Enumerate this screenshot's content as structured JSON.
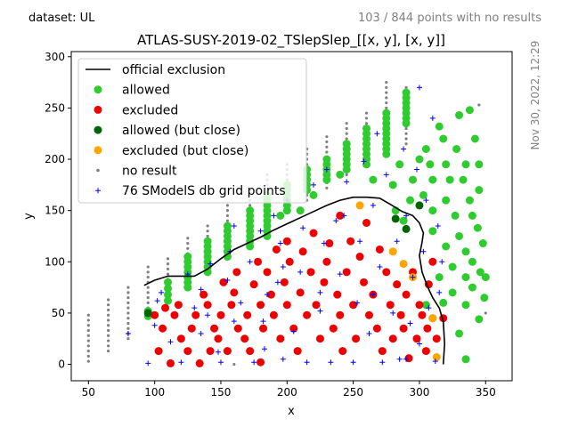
{
  "header": {
    "dataset_label": "dataset: UL",
    "no_results_note": "103 / 844 points with no results",
    "timestamp": "Nov 30, 2022, 12:29"
  },
  "chart_data": {
    "type": "scatter",
    "title": "ATLAS-SUSY-2019-02_TSlepSlep_[[x, y], [x, y]]",
    "xlabel": "x",
    "ylabel": "y",
    "xlim": [
      37,
      370
    ],
    "ylim": [
      -16,
      305
    ],
    "xticks": [
      50,
      100,
      150,
      200,
      250,
      300,
      350
    ],
    "yticks": [
      0,
      50,
      100,
      150,
      200,
      250,
      300
    ],
    "grid": false,
    "legend_position": "top-left",
    "colors": {
      "official_exclusion": "#000000",
      "allowed": "#2ecc2e",
      "excluded": "#ee0000",
      "allowed_close": "#006400",
      "excluded_close": "#ffa500",
      "no_result": "#808080",
      "db_grid": "#0000ff"
    },
    "legend": [
      {
        "key": "official_exclusion",
        "label": "official exclusion"
      },
      {
        "key": "allowed",
        "label": "allowed"
      },
      {
        "key": "excluded",
        "label": "excluded"
      },
      {
        "key": "allowed_close",
        "label": "allowed (but close)"
      },
      {
        "key": "excluded_close",
        "label": "excluded (but close)"
      },
      {
        "key": "no_result",
        "label": "no result"
      },
      {
        "key": "db_grid",
        "label": "76 SModelS db grid points"
      }
    ],
    "official_exclusion": [
      [
        92,
        77
      ],
      [
        100,
        82
      ],
      [
        110,
        86
      ],
      [
        120,
        86
      ],
      [
        130,
        86
      ],
      [
        140,
        93
      ],
      [
        150,
        103
      ],
      [
        160,
        112
      ],
      [
        170,
        118
      ],
      [
        180,
        124
      ],
      [
        190,
        131
      ],
      [
        200,
        137
      ],
      [
        210,
        143
      ],
      [
        220,
        149
      ],
      [
        230,
        155
      ],
      [
        240,
        160
      ],
      [
        250,
        163
      ],
      [
        260,
        163
      ],
      [
        270,
        162
      ],
      [
        278,
        156
      ],
      [
        287,
        149
      ],
      [
        295,
        145
      ],
      [
        300,
        138
      ],
      [
        303,
        128
      ],
      [
        302,
        119
      ],
      [
        300,
        106
      ],
      [
        302,
        90
      ],
      [
        306,
        76
      ],
      [
        310,
        65
      ],
      [
        315,
        55
      ],
      [
        318,
        42
      ],
      [
        319,
        20
      ],
      [
        318,
        0
      ]
    ],
    "allowed_points": [
      [
        95,
        47
      ],
      [
        95,
        52
      ],
      [
        110,
        62
      ],
      [
        110,
        68
      ],
      [
        110,
        74
      ],
      [
        110,
        80
      ],
      [
        125,
        75
      ],
      [
        125,
        80
      ],
      [
        125,
        85
      ],
      [
        125,
        90
      ],
      [
        125,
        95
      ],
      [
        125,
        100
      ],
      [
        125,
        105
      ],
      [
        140,
        90
      ],
      [
        140,
        95
      ],
      [
        140,
        100
      ],
      [
        140,
        105
      ],
      [
        140,
        110
      ],
      [
        140,
        115
      ],
      [
        140,
        120
      ],
      [
        155,
        105
      ],
      [
        155,
        110
      ],
      [
        155,
        115
      ],
      [
        155,
        120
      ],
      [
        155,
        125
      ],
      [
        155,
        130
      ],
      [
        155,
        135
      ],
      [
        172,
        115
      ],
      [
        172,
        120
      ],
      [
        172,
        125
      ],
      [
        172,
        130
      ],
      [
        172,
        135
      ],
      [
        172,
        140
      ],
      [
        172,
        145
      ],
      [
        172,
        150
      ],
      [
        185,
        125
      ],
      [
        185,
        130
      ],
      [
        185,
        135
      ],
      [
        185,
        140
      ],
      [
        185,
        145
      ],
      [
        185,
        150
      ],
      [
        185,
        155
      ],
      [
        185,
        160
      ],
      [
        185,
        165
      ],
      [
        195,
        145
      ],
      [
        200,
        150
      ],
      [
        200,
        155
      ],
      [
        200,
        160
      ],
      [
        200,
        165
      ],
      [
        200,
        170
      ],
      [
        200,
        175
      ],
      [
        210,
        150
      ],
      [
        215,
        170
      ],
      [
        215,
        175
      ],
      [
        215,
        180
      ],
      [
        215,
        185
      ],
      [
        215,
        190
      ],
      [
        220,
        165
      ],
      [
        230,
        180
      ],
      [
        230,
        185
      ],
      [
        230,
        190
      ],
      [
        230,
        195
      ],
      [
        230,
        200
      ],
      [
        240,
        185
      ],
      [
        245,
        190
      ],
      [
        245,
        195
      ],
      [
        245,
        200
      ],
      [
        245,
        205
      ],
      [
        245,
        210
      ],
      [
        245,
        215
      ],
      [
        260,
        195
      ],
      [
        260,
        200
      ],
      [
        260,
        205
      ],
      [
        260,
        210
      ],
      [
        260,
        215
      ],
      [
        260,
        220
      ],
      [
        260,
        225
      ],
      [
        260,
        230
      ],
      [
        265,
        180
      ],
      [
        275,
        205
      ],
      [
        275,
        210
      ],
      [
        275,
        215
      ],
      [
        275,
        220
      ],
      [
        275,
        225
      ],
      [
        275,
        230
      ],
      [
        275,
        235
      ],
      [
        275,
        240
      ],
      [
        275,
        245
      ],
      [
        280,
        175
      ],
      [
        282,
        150
      ],
      [
        285,
        195
      ],
      [
        288,
        140
      ],
      [
        290,
        235
      ],
      [
        290,
        240
      ],
      [
        290,
        245
      ],
      [
        290,
        250
      ],
      [
        290,
        255
      ],
      [
        290,
        260
      ],
      [
        290,
        265
      ],
      [
        293,
        160
      ],
      [
        295,
        180
      ],
      [
        300,
        200
      ],
      [
        303,
        165
      ],
      [
        305,
        210
      ],
      [
        308,
        195
      ],
      [
        310,
        130
      ],
      [
        310,
        150
      ],
      [
        310,
        180
      ],
      [
        315,
        232
      ],
      [
        315,
        85
      ],
      [
        318,
        220
      ],
      [
        318,
        60
      ],
      [
        320,
        160
      ],
      [
        320,
        195
      ],
      [
        320,
        115
      ],
      [
        323,
        180
      ],
      [
        325,
        95
      ],
      [
        325,
        70
      ],
      [
        327,
        145
      ],
      [
        328,
        210
      ],
      [
        330,
        30
      ],
      [
        330,
        125
      ],
      [
        330,
        243
      ],
      [
        333,
        180
      ],
      [
        335,
        195
      ],
      [
        335,
        110
      ],
      [
        335,
        85
      ],
      [
        335,
        58
      ],
      [
        338,
        160
      ],
      [
        338,
        248
      ],
      [
        340,
        145
      ],
      [
        340,
        100
      ],
      [
        340,
        75
      ],
      [
        342,
        220
      ],
      [
        344,
        133
      ],
      [
        345,
        195
      ],
      [
        345,
        170
      ],
      [
        345,
        44
      ],
      [
        346,
        90
      ],
      [
        348,
        118
      ],
      [
        349,
        65
      ],
      [
        350,
        85
      ],
      [
        305,
        58
      ],
      [
        335,
        5
      ]
    ],
    "excluded_points": [
      [
        100,
        48
      ],
      [
        103,
        13
      ],
      [
        106,
        35
      ],
      [
        108,
        55
      ],
      [
        112,
        1
      ],
      [
        115,
        48
      ],
      [
        118,
        58
      ],
      [
        120,
        25
      ],
      [
        125,
        13
      ],
      [
        128,
        35
      ],
      [
        131,
        48
      ],
      [
        134,
        1
      ],
      [
        137,
        68
      ],
      [
        140,
        58
      ],
      [
        142,
        13
      ],
      [
        145,
        35
      ],
      [
        148,
        25
      ],
      [
        150,
        48
      ],
      [
        152,
        80
      ],
      [
        155,
        13
      ],
      [
        158,
        58
      ],
      [
        160,
        70
      ],
      [
        162,
        90
      ],
      [
        163,
        35
      ],
      [
        168,
        25
      ],
      [
        170,
        48
      ],
      [
        172,
        13
      ],
      [
        175,
        78
      ],
      [
        178,
        100
      ],
      [
        180,
        58
      ],
      [
        180,
        2
      ],
      [
        182,
        35
      ],
      [
        185,
        90
      ],
      [
        188,
        68
      ],
      [
        190,
        48
      ],
      [
        192,
        112
      ],
      [
        195,
        25
      ],
      [
        198,
        80
      ],
      [
        200,
        58
      ],
      [
        200,
        120
      ],
      [
        202,
        100
      ],
      [
        205,
        35
      ],
      [
        208,
        13
      ],
      [
        210,
        70
      ],
      [
        212,
        110
      ],
      [
        215,
        48
      ],
      [
        218,
        90
      ],
      [
        220,
        128
      ],
      [
        222,
        58
      ],
      [
        225,
        25
      ],
      [
        228,
        80
      ],
      [
        230,
        100
      ],
      [
        232,
        118
      ],
      [
        235,
        35
      ],
      [
        238,
        68
      ],
      [
        240,
        48
      ],
      [
        240,
        145
      ],
      [
        242,
        13
      ],
      [
        245,
        90
      ],
      [
        248,
        120
      ],
      [
        250,
        58
      ],
      [
        252,
        25
      ],
      [
        255,
        105
      ],
      [
        258,
        80
      ],
      [
        260,
        138
      ],
      [
        262,
        48
      ],
      [
        265,
        68
      ],
      [
        268,
        35
      ],
      [
        270,
        112
      ],
      [
        272,
        13
      ],
      [
        275,
        90
      ],
      [
        278,
        58
      ],
      [
        280,
        25
      ],
      [
        283,
        78
      ],
      [
        286,
        48
      ],
      [
        288,
        35
      ],
      [
        290,
        68
      ],
      [
        292,
        6
      ],
      [
        295,
        90
      ],
      [
        298,
        25
      ],
      [
        300,
        58
      ],
      [
        302,
        48
      ],
      [
        305,
        13
      ],
      [
        306,
        35
      ],
      [
        307,
        78
      ],
      [
        310,
        100
      ],
      [
        313,
        25
      ],
      [
        318,
        45
      ]
    ],
    "allowed_close_points": [
      [
        95,
        50
      ],
      [
        282,
        142
      ],
      [
        290,
        132
      ],
      [
        300,
        155
      ],
      [
        310,
        45
      ]
    ],
    "excluded_close_points": [
      [
        255,
        155
      ],
      [
        280,
        110
      ],
      [
        288,
        98
      ],
      [
        295,
        85
      ],
      [
        310,
        45
      ],
      [
        313,
        7
      ]
    ],
    "no_result_columns": [
      {
        "x": 50,
        "ymin": 3,
        "ymax": 50
      },
      {
        "x": 65,
        "ymin": 13,
        "ymax": 63
      },
      {
        "x": 80,
        "ymin": 25,
        "ymax": 78
      },
      {
        "x": 95,
        "ymin": 55,
        "ymax": 95
      },
      {
        "x": 110,
        "ymin": 68,
        "ymax": 107
      },
      {
        "x": 125,
        "ymin": 93,
        "ymax": 123
      },
      {
        "x": 140,
        "ymin": 105,
        "ymax": 138
      },
      {
        "x": 155,
        "ymin": 115,
        "ymax": 155
      },
      {
        "x": 172,
        "ymin": 130,
        "ymax": 170
      },
      {
        "x": 185,
        "ymin": 140,
        "ymax": 185
      },
      {
        "x": 200,
        "ymin": 150,
        "ymax": 195
      },
      {
        "x": 215,
        "ymin": 160,
        "ymax": 210
      },
      {
        "x": 230,
        "ymin": 172,
        "ymax": 225
      },
      {
        "x": 245,
        "ymin": 185,
        "ymax": 238
      },
      {
        "x": 260,
        "ymin": 195,
        "ymax": 248
      },
      {
        "x": 275,
        "ymin": 205,
        "ymax": 275
      },
      {
        "x": 290,
        "ymin": 215,
        "ymax": 270
      }
    ],
    "no_result_extra": [
      [
        160,
        0
      ],
      [
        345,
        253
      ],
      [
        350,
        50
      ]
    ],
    "db_grid_points": [
      [
        80,
        30
      ],
      [
        95,
        1
      ],
      [
        100,
        38
      ],
      [
        102,
        62
      ],
      [
        105,
        70
      ],
      [
        112,
        22
      ],
      [
        120,
        2
      ],
      [
        125,
        88
      ],
      [
        130,
        55
      ],
      [
        135,
        73
      ],
      [
        140,
        48
      ],
      [
        142,
        98
      ],
      [
        148,
        12
      ],
      [
        150,
        2
      ],
      [
        155,
        82
      ],
      [
        157,
        110
      ],
      [
        160,
        135
      ],
      [
        165,
        60
      ],
      [
        172,
        100
      ],
      [
        175,
        2
      ],
      [
        180,
        130
      ],
      [
        182,
        42
      ],
      [
        185,
        68
      ],
      [
        190,
        145
      ],
      [
        193,
        80
      ],
      [
        195,
        118
      ],
      [
        197,
        5
      ],
      [
        200,
        160
      ],
      [
        205,
        32
      ],
      [
        210,
        90
      ],
      [
        212,
        133
      ],
      [
        215,
        2
      ],
      [
        220,
        175
      ],
      [
        225,
        52
      ],
      [
        228,
        118
      ],
      [
        230,
        190
      ],
      [
        233,
        2
      ],
      [
        237,
        140
      ],
      [
        240,
        88
      ],
      [
        245,
        178
      ],
      [
        250,
        2
      ],
      [
        253,
        60
      ],
      [
        255,
        120
      ],
      [
        258,
        198
      ],
      [
        262,
        30
      ],
      [
        265,
        155
      ],
      [
        268,
        225
      ],
      [
        270,
        95
      ],
      [
        272,
        2
      ],
      [
        275,
        185
      ],
      [
        280,
        50
      ],
      [
        283,
        120
      ],
      [
        285,
        5
      ],
      [
        288,
        210
      ],
      [
        290,
        145
      ],
      [
        293,
        40
      ],
      [
        295,
        85
      ],
      [
        298,
        190
      ],
      [
        300,
        270
      ],
      [
        300,
        20
      ],
      [
        303,
        110
      ],
      [
        305,
        160
      ],
      [
        307,
        55
      ],
      [
        310,
        240
      ],
      [
        312,
        3
      ],
      [
        314,
        135
      ],
      [
        315,
        70
      ],
      [
        317,
        100
      ],
      [
        243,
        145
      ],
      [
        197,
        95
      ],
      [
        135,
        30
      ],
      [
        160,
        42
      ],
      [
        183,
        15
      ],
      [
        225,
        70
      ],
      [
        265,
        68
      ],
      [
        290,
        5
      ]
    ]
  }
}
